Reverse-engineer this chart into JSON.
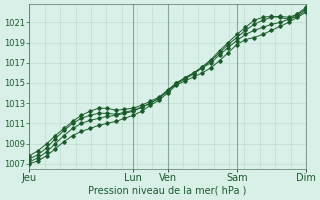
{
  "title": "Pression niveau de la mer( hPa )",
  "bg_color": "#d8f0e8",
  "grid_minor_color": "#c0ddd0",
  "grid_major_color": "#88aa99",
  "line_color": "#1a5c2a",
  "ylim": [
    1006.5,
    1022.8
  ],
  "yticks": [
    1007,
    1009,
    1011,
    1013,
    1015,
    1017,
    1019,
    1021
  ],
  "xtick_labels": [
    "Jeu",
    "Lun",
    "Ven",
    "Sam",
    "Dim"
  ],
  "xtick_positions": [
    0,
    3,
    4,
    6,
    8
  ],
  "n_points": 33,
  "series": [
    [
      1007.0,
      1007.3,
      1007.8,
      1008.5,
      1009.2,
      1009.8,
      1010.2,
      1010.5,
      1010.8,
      1011.0,
      1011.2,
      1011.5,
      1011.8,
      1012.2,
      1012.8,
      1013.3,
      1014.0,
      1014.8,
      1015.2,
      1015.6,
      1016.0,
      1016.5,
      1017.2,
      1018.0,
      1018.8,
      1019.3,
      1019.5,
      1019.8,
      1020.2,
      1020.6,
      1021.0,
      1021.5,
      1022.0
    ],
    [
      1007.2,
      1007.6,
      1008.2,
      1009.0,
      1009.8,
      1010.5,
      1011.0,
      1011.3,
      1011.5,
      1011.7,
      1011.8,
      1012.0,
      1012.2,
      1012.6,
      1013.0,
      1013.5,
      1014.2,
      1015.0,
      1015.5,
      1016.0,
      1016.5,
      1017.0,
      1017.8,
      1018.5,
      1019.2,
      1019.8,
      1020.2,
      1020.5,
      1020.8,
      1021.0,
      1021.3,
      1021.8,
      1022.3
    ],
    [
      1007.5,
      1007.9,
      1008.6,
      1009.5,
      1010.3,
      1011.0,
      1011.5,
      1011.8,
      1012.0,
      1012.0,
      1011.9,
      1012.1,
      1012.3,
      1012.6,
      1013.0,
      1013.5,
      1014.2,
      1014.9,
      1015.4,
      1015.9,
      1016.5,
      1017.2,
      1018.0,
      1018.8,
      1019.5,
      1020.2,
      1020.8,
      1021.2,
      1021.5,
      1021.6,
      1021.5,
      1021.8,
      1022.5
    ],
    [
      1007.8,
      1008.3,
      1009.0,
      1009.8,
      1010.5,
      1011.2,
      1011.8,
      1012.2,
      1012.5,
      1012.5,
      1012.3,
      1012.4,
      1012.5,
      1012.8,
      1013.2,
      1013.6,
      1014.3,
      1015.0,
      1015.5,
      1016.0,
      1016.6,
      1017.3,
      1018.2,
      1019.0,
      1019.8,
      1020.5,
      1021.2,
      1021.5,
      1021.6,
      1021.5,
      1021.3,
      1021.6,
      1022.2
    ]
  ],
  "ylabel_fontsize": 6,
  "xlabel_fontsize": 7,
  "tick_color": "#1a5c2a",
  "spine_color": "#557766"
}
